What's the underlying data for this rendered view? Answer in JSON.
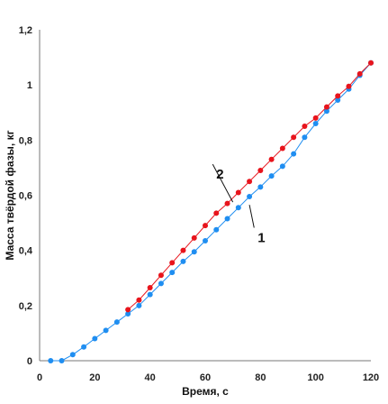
{
  "chart_data": {
    "type": "line",
    "xlabel": "Время, с",
    "ylabel": "Масса твёрдой фазы, кг",
    "xlim": [
      0,
      120
    ],
    "ylim": [
      0,
      1.2
    ],
    "x_ticks": [
      "0",
      "20",
      "40",
      "60",
      "80",
      "100",
      "120"
    ],
    "y_ticks": [
      "0",
      "0,2",
      "0,4",
      "0,6",
      "0,8",
      "1",
      "1,2"
    ],
    "grid": false,
    "legend": "none",
    "series": [
      {
        "color": "#1f8ef1",
        "points": [
          [
            4,
            0.0
          ],
          [
            8,
            0.0
          ],
          [
            12,
            0.022
          ],
          [
            16,
            0.05
          ],
          [
            20,
            0.08
          ],
          [
            24,
            0.11
          ],
          [
            28,
            0.14
          ],
          [
            32,
            0.17
          ],
          [
            36,
            0.2
          ],
          [
            40,
            0.24
          ],
          [
            44,
            0.28
          ],
          [
            48,
            0.32
          ],
          [
            52,
            0.36
          ],
          [
            56,
            0.395
          ],
          [
            60,
            0.435
          ],
          [
            64,
            0.475
          ],
          [
            68,
            0.515
          ],
          [
            72,
            0.555
          ],
          [
            76,
            0.595
          ],
          [
            80,
            0.63
          ],
          [
            84,
            0.67
          ],
          [
            88,
            0.705
          ],
          [
            92,
            0.75
          ],
          [
            96,
            0.81
          ],
          [
            100,
            0.86
          ],
          [
            104,
            0.905
          ],
          [
            108,
            0.945
          ],
          [
            112,
            0.985
          ],
          [
            116,
            1.035
          ],
          [
            120,
            1.08
          ]
        ]
      },
      {
        "color": "#e8141c",
        "points": [
          [
            32,
            0.185
          ],
          [
            36,
            0.22
          ],
          [
            40,
            0.265
          ],
          [
            44,
            0.31
          ],
          [
            48,
            0.355
          ],
          [
            52,
            0.4
          ],
          [
            56,
            0.445
          ],
          [
            60,
            0.49
          ],
          [
            64,
            0.535
          ],
          [
            68,
            0.57
          ],
          [
            72,
            0.61
          ],
          [
            76,
            0.65
          ],
          [
            80,
            0.69
          ],
          [
            84,
            0.73
          ],
          [
            88,
            0.77
          ],
          [
            92,
            0.81
          ],
          [
            96,
            0.85
          ],
          [
            100,
            0.88
          ],
          [
            104,
            0.92
          ],
          [
            108,
            0.96
          ],
          [
            112,
            0.995
          ],
          [
            116,
            1.04
          ],
          [
            120,
            1.08
          ]
        ]
      }
    ],
    "annotations": [
      {
        "text": "1",
        "point_to": [
          76,
          0.565
        ],
        "label_at": [
          79,
          0.43
        ]
      },
      {
        "text": "2",
        "point_to": [
          70,
          0.575
        ],
        "label_at": [
          64,
          0.66
        ]
      }
    ]
  }
}
